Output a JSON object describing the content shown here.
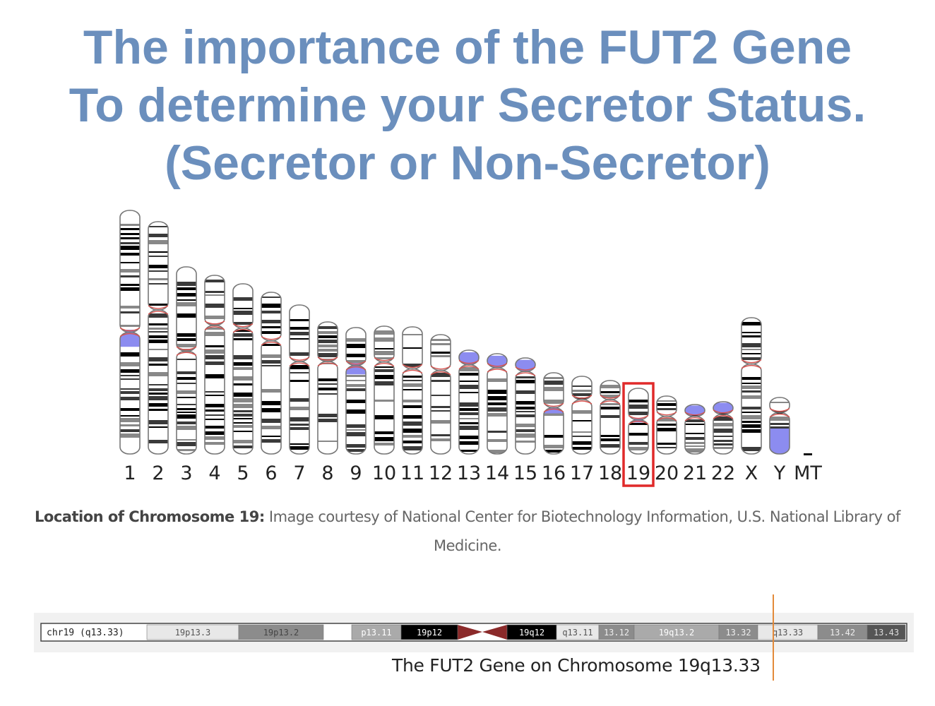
{
  "title": {
    "line1": "The importance of the FUT2 Gene",
    "line2": "To determine your Secretor Status.",
    "line3": "(Secretor or Non-Secretor)"
  },
  "karyotype": {
    "chromosomes": [
      "1",
      "2",
      "3",
      "4",
      "5",
      "6",
      "7",
      "8",
      "9",
      "10",
      "11",
      "12",
      "13",
      "14",
      "15",
      "16",
      "17",
      "18",
      "19",
      "20",
      "21",
      "22",
      "X",
      "Y",
      "MT"
    ],
    "highlighted": "19",
    "highlight_color": "#e02a2a",
    "centromere_color": "#d9534f",
    "heterochromatin_color": "#8c8cf0"
  },
  "caption": {
    "bold": "Location of Chromosome 19:",
    "text": "Image courtesy of National Center for Biotechnology Information, U.S. National Library of Medicine."
  },
  "ideogram": {
    "label": "chr19 (q13.33)",
    "bands": [
      "19p13.3",
      "19p13.2",
      "p13.11",
      "19p12",
      "19q12",
      "q13.11",
      "13.12",
      "19q13.2",
      "13.32",
      "q13.33",
      "13.42",
      "13.43"
    ],
    "centromere_color": "#8b2a2a",
    "marker_color": "#e38a3a"
  },
  "gene_caption": "The FUT2 Gene on Chromosome 19q13.33"
}
